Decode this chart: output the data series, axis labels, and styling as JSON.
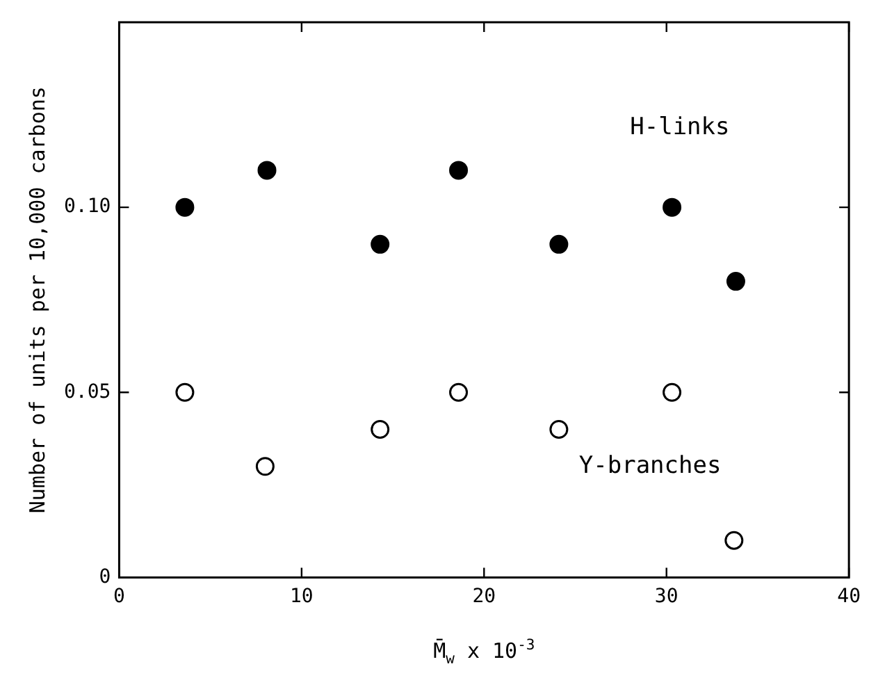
{
  "chart_data": {
    "type": "scatter",
    "xlabel": "M̄$_{w}$ x 10$^{-3}$",
    "ylabel": "Number of units per 10,000 carbons",
    "xlim": [
      0,
      40
    ],
    "xticks": [
      0,
      10,
      20,
      30,
      40
    ],
    "ylim": [
      0,
      0.15
    ],
    "yticks": [
      0,
      0.05,
      {
        "value": 0.1,
        "label": "0.10"
      }
    ],
    "marker": "circle",
    "legend": false,
    "series": [
      {
        "name": "H-links",
        "color": "#000000",
        "x": [
          3.6,
          8.1,
          14.3,
          18.6,
          24.1,
          30.3,
          33.8
        ],
        "values": [
          0.1,
          0.11,
          0.09,
          0.11,
          0.09,
          0.1,
          0.08
        ]
      },
      {
        "name": "Y-branches",
        "color": "#000000",
        "x": [
          3.6,
          8.0,
          14.3,
          18.6,
          24.1,
          30.3,
          33.7
        ],
        "values": [
          0.05,
          0.03,
          0.04,
          0.05,
          0.04,
          0.05,
          0.01
        ]
      }
    ]
  }
}
